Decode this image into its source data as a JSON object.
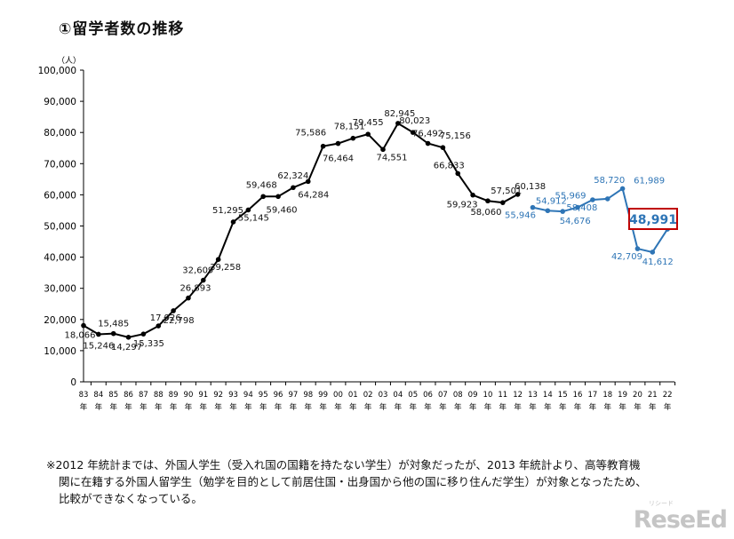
{
  "title": "①留学者数の推移",
  "chart_data": {
    "type": "line",
    "y_unit": "（人）",
    "ylim": [
      0,
      100000
    ],
    "y_ticks": [
      0,
      10000,
      20000,
      30000,
      40000,
      50000,
      60000,
      70000,
      80000,
      90000,
      100000
    ],
    "y_tick_labels": [
      "0",
      "10,000",
      "20,000",
      "30,000",
      "40,000",
      "50,000",
      "60,000",
      "70,000",
      "80,000",
      "90,000",
      "100,000"
    ],
    "x_labels": [
      "83",
      "84",
      "85",
      "86",
      "87",
      "88",
      "89",
      "90",
      "91",
      "92",
      "93",
      "94",
      "95",
      "96",
      "97",
      "98",
      "99",
      "00",
      "01",
      "02",
      "03",
      "04",
      "05",
      "06",
      "07",
      "08",
      "09",
      "10",
      "11",
      "12",
      "13",
      "14",
      "15",
      "16",
      "17",
      "18",
      "19",
      "20",
      "21",
      "22"
    ],
    "x_suffix": "年",
    "series": [
      {
        "color": "#000000",
        "start_index": 0,
        "values": [
          18066,
          15246,
          15485,
          14297,
          15335,
          17926,
          22798,
          26893,
          32609,
          39258,
          51295,
          55145,
          59468,
          59460,
          62324,
          64284,
          75586,
          76464,
          78151,
          79455,
          74551,
          82945,
          80023,
          76492,
          75156,
          66833,
          59923,
          58060,
          57501,
          60138
        ],
        "labels": [
          "18,066",
          "15,246",
          "15,485",
          "14,297",
          "15,335",
          "17,926",
          "22,798",
          "26,893",
          "32,609",
          "39,258",
          "51,295",
          "55,145",
          "59,468",
          "59,460",
          "62,324",
          "64,284",
          "75,586",
          "76,464",
          "78,151",
          "79,455",
          "74,551",
          "82,945",
          "80,023",
          "76,492",
          "75,156",
          "66,833",
          "59,923",
          "58,060",
          "57,501",
          "60,138"
        ]
      },
      {
        "color": "#2e75b6",
        "start_index": 30,
        "values": [
          55946,
          54912,
          54676,
          55969,
          58408,
          58720,
          61989,
          42709,
          41612,
          48991
        ],
        "labels": [
          "55,946",
          "54,912",
          "54,676",
          "55,969",
          "58,408",
          "58,720",
          "61,989",
          "42,709",
          "41,612",
          "48,991"
        ]
      }
    ],
    "highlight": {
      "label": "48,991",
      "color": "#c00000"
    }
  },
  "note": {
    "line1": "※2012 年統計までは、外国人学生（受入れ国の国籍を持たない学生）が対象だったが、2013 年統計より、高等教育機",
    "line2": "関に在籍する外国人留学生（勉学を目的として前居住国・出身国から他の国に移り住んだ学生）が対象となったため、",
    "line3": "比較ができなくなっている。"
  },
  "logo": {
    "text": "ReseEd",
    "sub": "リシード"
  }
}
